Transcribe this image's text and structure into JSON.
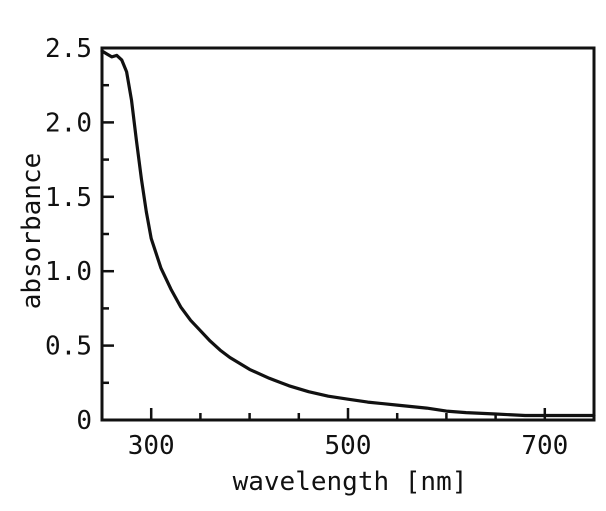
{
  "chart_data": {
    "type": "line",
    "title": "",
    "xlabel": "wavelength [nm]",
    "ylabel": "absorbance",
    "xlim": [
      250,
      750
    ],
    "ylim": [
      0,
      2.5
    ],
    "x_ticks": [
      300,
      500,
      700
    ],
    "x_tick_labels": [
      "300",
      "500",
      "700"
    ],
    "y_ticks": [
      0,
      0.5,
      1.0,
      1.5,
      2.0,
      2.5
    ],
    "y_tick_labels": [
      "0",
      "0.5",
      "1.0",
      "1.5",
      "2.0",
      "2.5"
    ],
    "x_minor_ticks": [
      350,
      400,
      450,
      550,
      600,
      650
    ],
    "y_minor_ticks": [
      0.25,
      0.75,
      1.25,
      1.75,
      2.25
    ],
    "grid": false,
    "series": [
      {
        "x": [
          250,
          255,
          260,
          265,
          270,
          275,
          280,
          285,
          290,
          295,
          300,
          310,
          320,
          330,
          340,
          350,
          360,
          370,
          380,
          400,
          420,
          440,
          460,
          480,
          500,
          520,
          550,
          580,
          600,
          620,
          650,
          680,
          700,
          720,
          750
        ],
        "y": [
          2.48,
          2.46,
          2.44,
          2.45,
          2.42,
          2.34,
          2.15,
          1.88,
          1.62,
          1.4,
          1.22,
          1.02,
          0.88,
          0.76,
          0.67,
          0.6,
          0.53,
          0.47,
          0.42,
          0.34,
          0.28,
          0.23,
          0.19,
          0.16,
          0.14,
          0.12,
          0.1,
          0.08,
          0.06,
          0.05,
          0.04,
          0.03,
          0.03,
          0.03,
          0.03
        ]
      }
    ]
  }
}
